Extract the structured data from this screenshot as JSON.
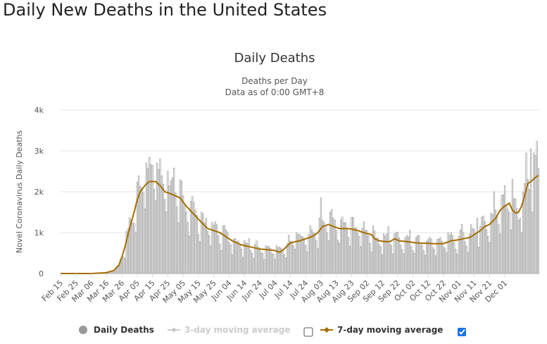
{
  "page": {
    "title": "Daily New Deaths in the United States"
  },
  "chart_data": {
    "type": "bar",
    "title": "Daily Deaths",
    "subtitle": "Deaths per Day",
    "subtitle2": "Data as of 0:00 GMT+8",
    "ylabel": "Novel Coronavirus Daily Deaths",
    "xlabel": "",
    "ylim": [
      0,
      4000
    ],
    "ytick_values": [
      0,
      1000,
      2000,
      3000,
      4000
    ],
    "ytick_labels": [
      "0",
      "1k",
      "2k",
      "3k",
      "4k"
    ],
    "x_start_date": "Feb 15",
    "tick_labels": [
      "Feb 15",
      "Feb 25",
      "Mar 06",
      "Mar 16",
      "Mar 26",
      "Apr 05",
      "Apr 15",
      "Apr 25",
      "May 05",
      "May 15",
      "May 25",
      "Jun 04",
      "Jun 14",
      "Jun 24",
      "Jul 04",
      "Jul 14",
      "Jul 24",
      "Aug 03",
      "Aug 13",
      "Aug 23",
      "Sep 02",
      "Sep 12",
      "Sep 22",
      "Oct 02",
      "Oct 12",
      "Oct 22",
      "Nov 01",
      "Nov 11",
      "Nov 21",
      "Dec 01"
    ],
    "tick_every_days": 10,
    "moving_average_anchors": [
      [
        0,
        0
      ],
      [
        20,
        0
      ],
      [
        30,
        20
      ],
      [
        35,
        80
      ],
      [
        38,
        200
      ],
      [
        40,
        400
      ],
      [
        42,
        650
      ],
      [
        45,
        1100
      ],
      [
        48,
        1500
      ],
      [
        50,
        1800
      ],
      [
        52,
        2000
      ],
      [
        55,
        2150
      ],
      [
        58,
        2250
      ],
      [
        62,
        2250
      ],
      [
        65,
        2150
      ],
      [
        68,
        2000
      ],
      [
        72,
        1950
      ],
      [
        78,
        1850
      ],
      [
        82,
        1650
      ],
      [
        87,
        1450
      ],
      [
        92,
        1250
      ],
      [
        96,
        1100
      ],
      [
        100,
        1050
      ],
      [
        104,
        1000
      ],
      [
        108,
        900
      ],
      [
        112,
        800
      ],
      [
        118,
        700
      ],
      [
        124,
        650
      ],
      [
        130,
        600
      ],
      [
        136,
        580
      ],
      [
        140,
        560
      ],
      [
        143,
        520
      ],
      [
        146,
        600
      ],
      [
        150,
        750
      ],
      [
        156,
        800
      ],
      [
        160,
        850
      ],
      [
        164,
        900
      ],
      [
        168,
        1000
      ],
      [
        171,
        1150
      ],
      [
        175,
        1200
      ],
      [
        178,
        1150
      ],
      [
        182,
        1100
      ],
      [
        188,
        1100
      ],
      [
        194,
        1050
      ],
      [
        198,
        1000
      ],
      [
        203,
        950
      ],
      [
        205,
        850
      ],
      [
        208,
        800
      ],
      [
        212,
        780
      ],
      [
        215,
        780
      ],
      [
        218,
        850
      ],
      [
        221,
        800
      ],
      [
        226,
        780
      ],
      [
        232,
        750
      ],
      [
        238,
        740
      ],
      [
        244,
        730
      ],
      [
        250,
        730
      ],
      [
        255,
        800
      ],
      [
        259,
        820
      ],
      [
        263,
        850
      ],
      [
        267,
        880
      ],
      [
        270,
        950
      ],
      [
        274,
        1050
      ],
      [
        277,
        1150
      ],
      [
        280,
        1200
      ],
      [
        284,
        1350
      ],
      [
        287,
        1550
      ],
      [
        290,
        1650
      ],
      [
        293,
        1720
      ],
      [
        295,
        1550
      ],
      [
        297,
        1480
      ],
      [
        299,
        1500
      ],
      [
        301,
        1650
      ],
      [
        303,
        1900
      ],
      [
        305,
        2200
      ],
      [
        307,
        2250
      ],
      [
        310,
        2350
      ],
      [
        312,
        2400
      ]
    ],
    "day_peaks": [
      [
        56,
        2700
      ],
      [
        59,
        2660
      ],
      [
        63,
        2700
      ],
      [
        70,
        2500
      ],
      [
        74,
        2580
      ],
      [
        80,
        1900
      ],
      [
        88,
        1550
      ],
      [
        123,
        850
      ],
      [
        154,
        1000
      ],
      [
        170,
        1850
      ],
      [
        176,
        1500
      ],
      [
        200,
        1050
      ],
      [
        214,
        1150
      ],
      [
        228,
        1050
      ],
      [
        262,
        1200
      ],
      [
        272,
        1350
      ],
      [
        283,
        2000
      ],
      [
        290,
        2150
      ],
      [
        295,
        2300
      ],
      [
        304,
        2950
      ],
      [
        307,
        3050
      ],
      [
        309,
        2950
      ],
      [
        311,
        3230
      ]
    ],
    "series": [
      {
        "name": "Daily Deaths",
        "color": "#aaaaaa",
        "visible": true
      },
      {
        "name": "3-day moving average",
        "color": "#cccccc",
        "visible": false
      },
      {
        "name": "7-day moving average",
        "color": "#a66d00",
        "visible": true
      }
    ]
  },
  "legend": {
    "daily_label": "Daily Deaths",
    "ma3_label": "3-day moving average",
    "ma7_label": "7-day moving average",
    "ma3_checked": false,
    "ma7_checked": true
  },
  "colors": {
    "bar": "#ffffff",
    "bar_stroke": "#9a9a9a",
    "ma7": "#a66d00",
    "checkbox_checked": "#1a73e8",
    "grid": "#e6e6e6"
  }
}
